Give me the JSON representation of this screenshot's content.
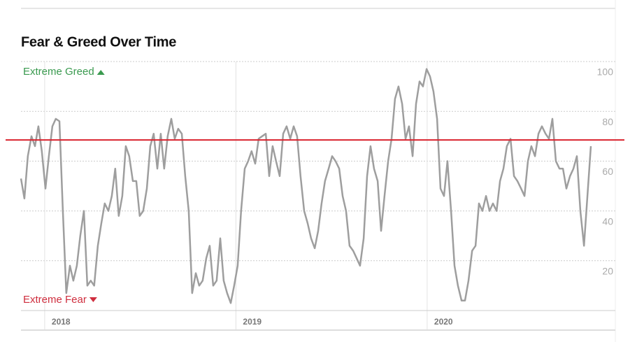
{
  "chart_data": {
    "type": "line",
    "title": "Fear & Greed Over Time",
    "annotations": {
      "top": "Extreme Greed",
      "bottom": "Extreme Fear"
    },
    "annotation_colors": {
      "top": "#3a9a4f",
      "bottom": "#cf2e3e"
    },
    "color": "#9e9e9e",
    "reference_line": {
      "value": 68.5,
      "color": "#d9232e"
    },
    "xlim": [
      2017.876,
      2020.856
    ],
    "xticks": [
      2018,
      2019,
      2020
    ],
    "ylim": [
      0,
      100
    ],
    "yticks": [
      20,
      40,
      60,
      80,
      100
    ],
    "grid": true,
    "x": [
      2017.876,
      2017.894,
      2017.912,
      2017.931,
      2017.949,
      2017.967,
      2017.985,
      2018.004,
      2018.022,
      2018.04,
      2018.058,
      2018.077,
      2018.095,
      2018.113,
      2018.132,
      2018.15,
      2018.168,
      2018.186,
      2018.205,
      2018.223,
      2018.241,
      2018.259,
      2018.278,
      2018.296,
      2018.314,
      2018.333,
      2018.351,
      2018.369,
      2018.387,
      2018.406,
      2018.424,
      2018.442,
      2018.461,
      2018.479,
      2018.497,
      2018.515,
      2018.534,
      2018.552,
      2018.57,
      2018.589,
      2018.607,
      2018.625,
      2018.643,
      2018.662,
      2018.68,
      2018.698,
      2018.717,
      2018.735,
      2018.753,
      2018.771,
      2018.79,
      2018.808,
      2018.826,
      2018.845,
      2018.863,
      2018.881,
      2018.899,
      2018.918,
      2018.936,
      2018.954,
      2018.973,
      2018.991,
      2019.009,
      2019.027,
      2019.046,
      2019.064,
      2019.082,
      2019.101,
      2019.119,
      2019.137,
      2019.156,
      2019.174,
      2019.192,
      2019.21,
      2019.229,
      2019.247,
      2019.265,
      2019.284,
      2019.302,
      2019.32,
      2019.338,
      2019.357,
      2019.375,
      2019.393,
      2019.412,
      2019.43,
      2019.448,
      2019.466,
      2019.485,
      2019.503,
      2019.521,
      2019.54,
      2019.558,
      2019.576,
      2019.594,
      2019.613,
      2019.631,
      2019.649,
      2019.668,
      2019.686,
      2019.704,
      2019.722,
      2019.741,
      2019.759,
      2019.777,
      2019.796,
      2019.814,
      2019.832,
      2019.85,
      2019.869,
      2019.887,
      2019.905,
      2019.924,
      2019.942,
      2019.96,
      2019.978,
      2019.997,
      2020.015,
      2020.033,
      2020.052,
      2020.07,
      2020.088,
      2020.106,
      2020.125,
      2020.143,
      2020.161,
      2020.18,
      2020.198,
      2020.216,
      2020.235,
      2020.253,
      2020.271,
      2020.289,
      2020.308,
      2020.326,
      2020.344,
      2020.363,
      2020.381,
      2020.399,
      2020.417,
      2020.436,
      2020.454,
      2020.472,
      2020.491,
      2020.509,
      2020.527,
      2020.545,
      2020.564,
      2020.582,
      2020.6,
      2020.619,
      2020.637,
      2020.655,
      2020.673,
      2020.692,
      2020.71,
      2020.728,
      2020.747,
      2020.765,
      2020.783,
      2020.801,
      2020.82,
      2020.838,
      2020.856
    ],
    "values": [
      53,
      45,
      62,
      70,
      66,
      74,
      64,
      49,
      62,
      74,
      77,
      76,
      40,
      7,
      18,
      12,
      18,
      30,
      40,
      10,
      12,
      10,
      26,
      35,
      43,
      40,
      46,
      57,
      38,
      46,
      66,
      62,
      52,
      52,
      38,
      40,
      49,
      66,
      71,
      57,
      71,
      57,
      70,
      77,
      69,
      73,
      71,
      54,
      40,
      7,
      15,
      10,
      12,
      21,
      26,
      10,
      12,
      29,
      12,
      7,
      3,
      10,
      18,
      40,
      57,
      60,
      64,
      59,
      69,
      70,
      71,
      54,
      66,
      60,
      54,
      71,
      74,
      69,
      74,
      70,
      54,
      40,
      35,
      29,
      25,
      32,
      43,
      52,
      57,
      62,
      60,
      57,
      46,
      40,
      26,
      24,
      21,
      18,
      29,
      54,
      66,
      57,
      52,
      32,
      46,
      60,
      69,
      85,
      90,
      83,
      69,
      74,
      62,
      83,
      92,
      90,
      97,
      94,
      88,
      77,
      49,
      46,
      60,
      40,
      18,
      10,
      4,
      4,
      12,
      24,
      26,
      43,
      40,
      46,
      40,
      43,
      40,
      52,
      57,
      66,
      69,
      54,
      52,
      49,
      46,
      60,
      66,
      62,
      71,
      74,
      71,
      69,
      77,
      60,
      57,
      57,
      49,
      54,
      57,
      62,
      40,
      26,
      46,
      66
    ]
  }
}
